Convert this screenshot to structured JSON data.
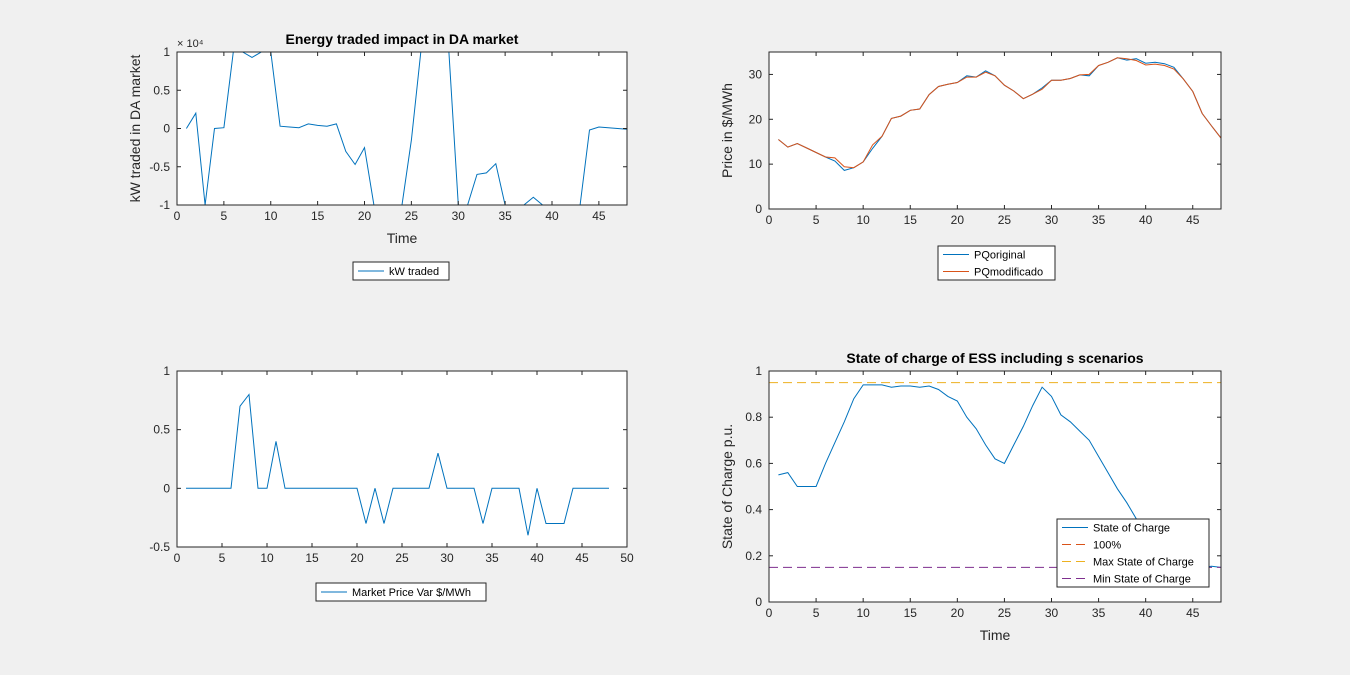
{
  "colors": {
    "background": "#f0f0f0",
    "axes_bg": "#ffffff",
    "series_blue": "#0072bd",
    "series_orange": "#d95319",
    "series_yellow": "#edb120",
    "series_purple": "#7e2f8e"
  },
  "chart_data": [
    {
      "type": "line",
      "title": "Energy traded impact in DA market",
      "xlabel": "Time",
      "ylabel": "kW traded in DA market",
      "xlim": [
        0,
        48
      ],
      "ylim": [
        -1,
        1
      ],
      "xticks": [
        0,
        5,
        10,
        15,
        20,
        25,
        30,
        35,
        40,
        45
      ],
      "yticks": [
        -1,
        -0.5,
        0,
        0.5,
        1
      ],
      "exponent_label": "× 10⁴",
      "legend_position": "below-axes",
      "series": [
        {
          "name": "kW traded",
          "color": "#0072bd",
          "x": [
            1,
            2,
            3,
            4,
            5,
            6,
            7,
            8,
            9,
            10,
            11,
            12,
            13,
            14,
            15,
            16,
            17,
            18,
            19,
            20,
            21,
            22,
            23,
            24,
            25,
            26,
            27,
            28,
            29,
            30,
            31,
            32,
            33,
            34,
            35,
            36,
            37,
            38,
            39,
            40,
            41,
            42,
            43,
            44,
            45,
            46,
            47,
            48
          ],
          "y": [
            0,
            0.2,
            -1,
            0,
            0.01,
            1,
            1,
            0.93,
            1,
            1,
            0.03,
            0.02,
            0.01,
            0.06,
            0.04,
            0.03,
            0.06,
            -0.3,
            -0.47,
            -0.25,
            -1,
            -1,
            -1,
            -1,
            -0.15,
            1,
            1,
            1,
            1,
            -1,
            -1,
            -0.6,
            -0.58,
            -0.46,
            -1,
            -1,
            -1,
            -0.9,
            -1,
            -1,
            -1,
            -1,
            -1,
            -0.02,
            0.02,
            0.01,
            0,
            -0.01
          ]
        }
      ]
    },
    {
      "type": "line",
      "title": "",
      "xlabel": "",
      "ylabel": "Price in $/MWh",
      "xlim": [
        0,
        48
      ],
      "ylim": [
        0,
        35
      ],
      "xticks": [
        0,
        5,
        10,
        15,
        20,
        25,
        30,
        35,
        40,
        45
      ],
      "yticks": [
        0,
        10,
        20,
        30
      ],
      "legend_position": "below-axes",
      "series": [
        {
          "name": "PQoriginal",
          "color": "#0072bd",
          "x": [
            1,
            2,
            3,
            4,
            5,
            6,
            7,
            8,
            9,
            10,
            11,
            12,
            13,
            14,
            15,
            16,
            17,
            18,
            19,
            20,
            21,
            22,
            23,
            24,
            25,
            26,
            27,
            28,
            29,
            30,
            31,
            32,
            33,
            34,
            35,
            36,
            37,
            38,
            39,
            40,
            41,
            42,
            43,
            44,
            45,
            46,
            47,
            48
          ],
          "y": [
            15.5,
            13.8,
            14.6,
            13.6,
            12.6,
            11.6,
            10.7,
            8.6,
            9.2,
            10.5,
            13.5,
            16.2,
            20.2,
            20.7,
            22,
            22.3,
            25.5,
            27.3,
            27.8,
            28.2,
            29.7,
            29.4,
            30.8,
            29.7,
            27.6,
            26.3,
            24.6,
            25.6,
            27,
            28.7,
            28.7,
            29.1,
            29.9,
            29.7,
            32,
            32.7,
            33.7,
            33.2,
            33.5,
            32.5,
            32.7,
            32.4,
            31.6,
            29,
            26.2,
            21.3,
            18.5,
            15.8
          ]
        },
        {
          "name": "PQmodificado",
          "color": "#d95319",
          "x": [
            1,
            2,
            3,
            4,
            5,
            6,
            7,
            8,
            9,
            10,
            11,
            12,
            13,
            14,
            15,
            16,
            17,
            18,
            19,
            20,
            21,
            22,
            23,
            24,
            25,
            26,
            27,
            28,
            29,
            30,
            31,
            32,
            33,
            34,
            35,
            36,
            37,
            38,
            39,
            40,
            41,
            42,
            43,
            44,
            45,
            46,
            47,
            48
          ],
          "y": [
            15.5,
            13.8,
            14.6,
            13.6,
            12.6,
            11.6,
            11.4,
            9.4,
            9.2,
            10.5,
            14.3,
            16.2,
            20.2,
            20.7,
            22,
            22.3,
            25.5,
            27.3,
            27.8,
            28.2,
            29.4,
            29.4,
            30.5,
            29.7,
            27.6,
            26.3,
            24.6,
            25.6,
            26.7,
            28.7,
            28.7,
            29.1,
            29.9,
            30,
            32,
            32.7,
            33.7,
            33.5,
            33.1,
            32.1,
            32.3,
            32,
            31.2,
            29,
            26.2,
            21.3,
            18.5,
            15.8
          ]
        }
      ]
    },
    {
      "type": "line",
      "title": "",
      "xlabel": "",
      "ylabel": "",
      "xlim": [
        0,
        50
      ],
      "ylim": [
        -0.5,
        1
      ],
      "xticks": [
        0,
        5,
        10,
        15,
        20,
        25,
        30,
        35,
        40,
        45,
        50
      ],
      "yticks": [
        -0.5,
        0,
        0.5,
        1
      ],
      "legend_position": "below-axes",
      "series": [
        {
          "name": "Market Price Var $/MWh",
          "color": "#0072bd",
          "x": [
            1,
            2,
            3,
            4,
            5,
            6,
            7,
            8,
            9,
            10,
            11,
            12,
            13,
            14,
            15,
            16,
            17,
            18,
            19,
            20,
            21,
            22,
            23,
            24,
            25,
            26,
            27,
            28,
            29,
            30,
            31,
            32,
            33,
            34,
            35,
            36,
            37,
            38,
            39,
            40,
            41,
            42,
            43,
            44,
            45,
            46,
            47,
            48
          ],
          "y": [
            0,
            0,
            0,
            0,
            0,
            0,
            0.7,
            0.8,
            0,
            0,
            0.4,
            0,
            0,
            0,
            0,
            0,
            0,
            0,
            0,
            0,
            -0.3,
            0,
            -0.3,
            0,
            0,
            0,
            0,
            0,
            0.3,
            0,
            0,
            0,
            0,
            -0.3,
            0,
            0,
            0,
            0,
            -0.4,
            0,
            -0.3,
            -0.3,
            -0.3,
            0,
            0,
            0,
            0,
            0
          ]
        }
      ]
    },
    {
      "type": "line",
      "title": "State of charge of ESS including s scenarios",
      "xlabel": "Time",
      "ylabel": "State of Charge p.u.",
      "xlim": [
        0,
        48
      ],
      "ylim": [
        0,
        1
      ],
      "xticks": [
        0,
        5,
        10,
        15,
        20,
        25,
        30,
        35,
        40,
        45
      ],
      "yticks": [
        0,
        0.2,
        0.4,
        0.6,
        0.8,
        1
      ],
      "legend_position": "bottom-right",
      "series": [
        {
          "name": "State of Charge",
          "color": "#0072bd",
          "style": "solid",
          "x": [
            1,
            2,
            3,
            4,
            5,
            6,
            7,
            8,
            9,
            10,
            11,
            12,
            13,
            14,
            15,
            16,
            17,
            18,
            19,
            20,
            21,
            22,
            23,
            24,
            25,
            26,
            27,
            28,
            29,
            30,
            31,
            32,
            33,
            34,
            35,
            36,
            37,
            38,
            39,
            40,
            41,
            42,
            43,
            44,
            45,
            46,
            47,
            48
          ],
          "y": [
            0.55,
            0.56,
            0.5,
            0.5,
            0.5,
            0.6,
            0.69,
            0.78,
            0.88,
            0.94,
            0.94,
            0.94,
            0.93,
            0.935,
            0.935,
            0.93,
            0.935,
            0.92,
            0.89,
            0.87,
            0.8,
            0.75,
            0.68,
            0.62,
            0.6,
            0.68,
            0.76,
            0.85,
            0.93,
            0.89,
            0.81,
            0.78,
            0.74,
            0.7,
            0.63,
            0.56,
            0.49,
            0.43,
            0.36,
            0.3,
            0.25,
            0.22,
            0.2,
            0.18,
            0.16,
            0.15,
            0.155,
            0.15
          ]
        },
        {
          "name": "100%",
          "color": "#d95319",
          "style": "dashed",
          "x": [
            0,
            48
          ],
          "y": [
            1,
            1
          ]
        },
        {
          "name": "Max State of Charge",
          "color": "#edb120",
          "style": "dashed",
          "x": [
            0,
            48
          ],
          "y": [
            0.95,
            0.95
          ]
        },
        {
          "name": "Min State of Charge",
          "color": "#7e2f8e",
          "style": "dashed",
          "x": [
            0,
            48
          ],
          "y": [
            0.15,
            0.15
          ]
        }
      ]
    }
  ]
}
